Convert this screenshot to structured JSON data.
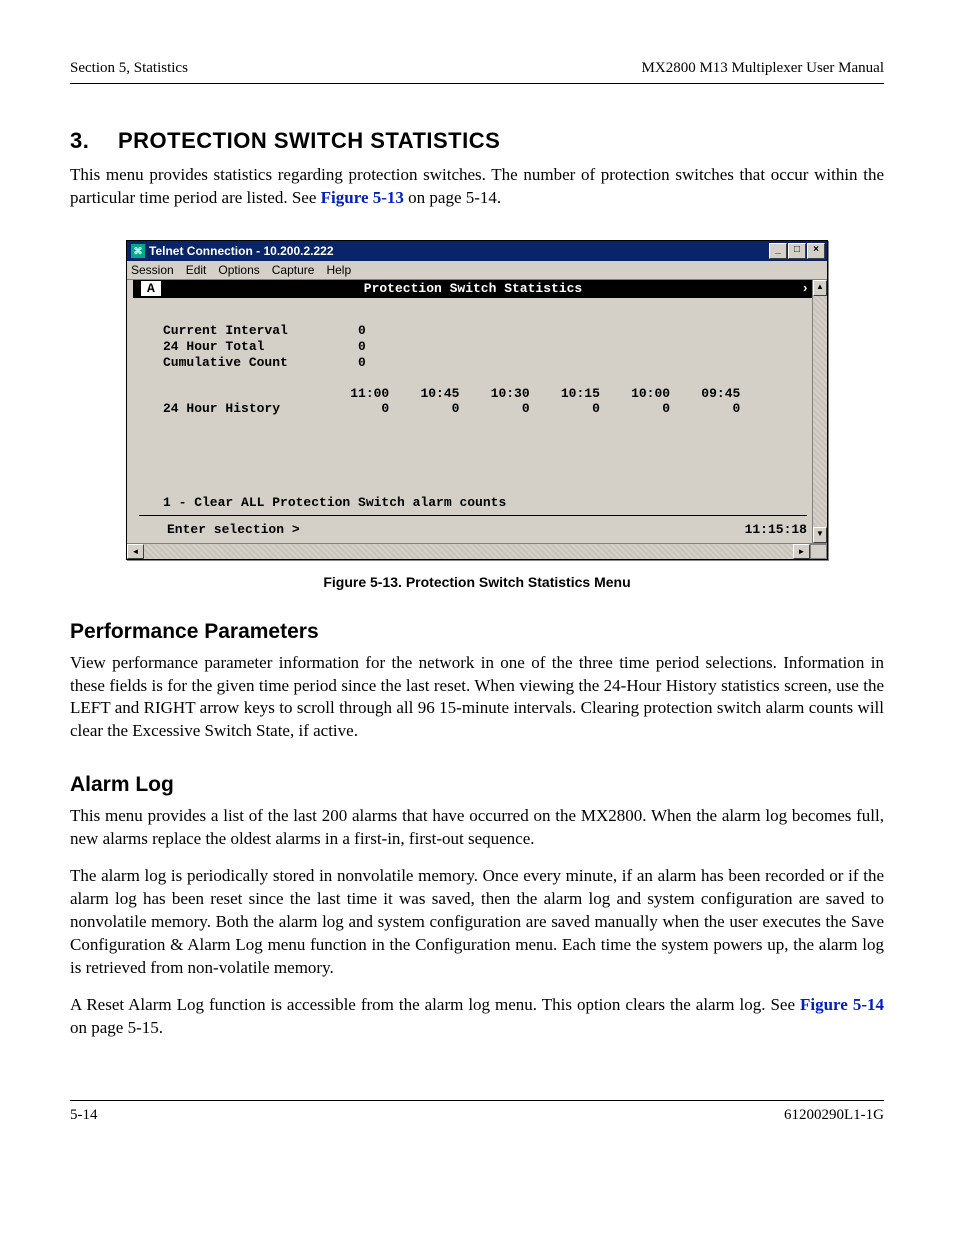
{
  "header": {
    "left": "Section 5, Statistics",
    "right": "MX2800 M13 Multiplexer User Manual"
  },
  "section3": {
    "number": "3.",
    "title": "PROTECTION SWITCH STATISTICS",
    "intro_a": "This menu provides statistics regarding protection switches. The number of protection switches that occur within the particular time period are listed. See ",
    "figref": "Figure 5-13",
    "intro_b": " on page 5-14."
  },
  "telnet": {
    "title": "Telnet Connection - 10.200.2.222",
    "menus": [
      "Session",
      "Edit",
      "Options",
      "Capture",
      "Help"
    ],
    "badge": "A",
    "banner_title": "Protection Switch Statistics",
    "stats": {
      "rows": [
        {
          "label": "Current Interval",
          "value": "0"
        },
        {
          "label": "24 Hour Total",
          "value": "0"
        },
        {
          "label": "Cumulative Count",
          "value": "0"
        }
      ],
      "history_label": "24 Hour History",
      "history_times": [
        "11:00",
        "10:45",
        "10:30",
        "10:15",
        "10:00",
        "09:45"
      ],
      "history_vals": [
        "0",
        "0",
        "0",
        "0",
        "0",
        "0"
      ]
    },
    "option_line": "1 - Clear ALL Protection Switch alarm counts",
    "prompt": "Enter selection >",
    "clock": "11:15:18"
  },
  "figure_caption": "Figure 5-13.  Protection Switch Statistics Menu",
  "perf": {
    "heading": "Performance Parameters",
    "p": "View performance parameter information for the network in one of the three time period selections. Information in these fields is for the given time period since the last reset. When viewing the 24-Hour History statistics screen, use the LEFT and RIGHT arrow keys to scroll through all 96 15-minute intervals. Clearing protection switch alarm counts will clear the Excessive Switch State, if active."
  },
  "alarm": {
    "heading": "Alarm Log",
    "p1": "This menu provides a list of the last 200 alarms that have occurred on the MX2800. When the alarm log becomes full, new alarms replace the oldest alarms in a first-in, first-out sequence.",
    "p2": "The alarm log is periodically stored in nonvolatile memory. Once every minute, if an alarm has been recorded or if the alarm log has been reset since the last time it was saved, then the alarm log and system configuration are saved to nonvolatile memory. Both the alarm log and system configuration are saved manually when the user executes the Save Configuration & Alarm Log menu function in the Configuration menu. Each time the system powers up, the alarm log is retrieved from non-volatile memory.",
    "p3a": "A Reset Alarm Log function is accessible from the alarm log menu. This option clears the alarm log. See ",
    "figref": "Figure 5-14",
    "p3b": " on page 5-15."
  },
  "footer": {
    "left": "5-14",
    "right": "61200290L1-1G"
  }
}
